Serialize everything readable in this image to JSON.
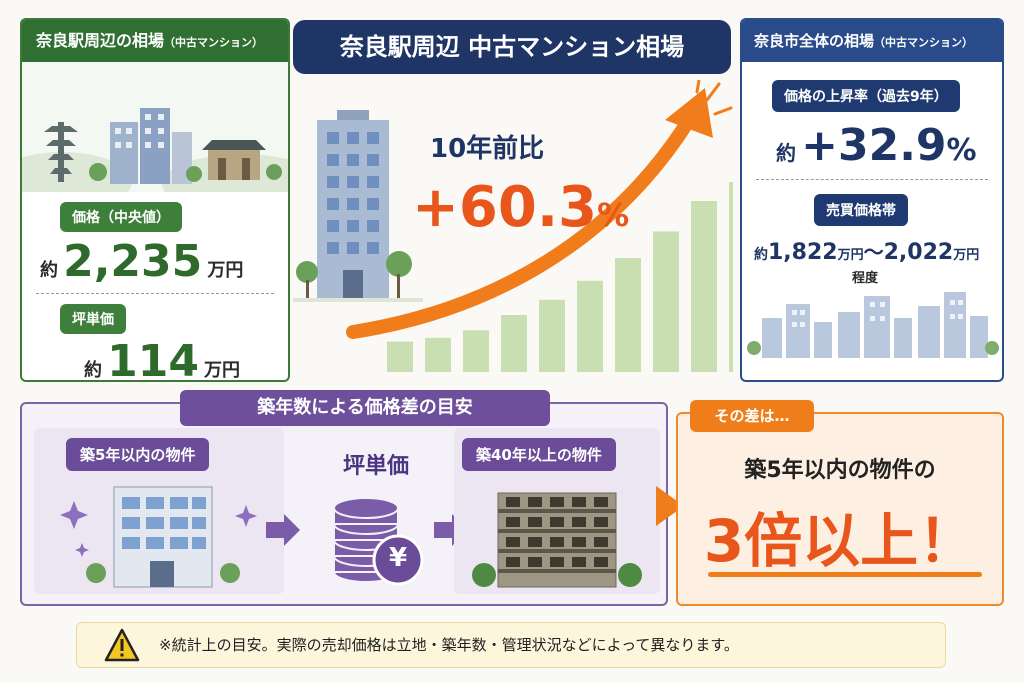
{
  "title": "奈良駅周辺 中古マンション相場",
  "left": {
    "header": "奈良駅周辺の相場",
    "header_sub": "（中古マンション）",
    "price_label": "価格（中央値）",
    "price_prefix": "約",
    "price_value": "2,235",
    "price_unit": "万円",
    "tsubo_label": "坪単価",
    "tsubo_prefix": "約",
    "tsubo_value": "114",
    "tsubo_unit": "万円"
  },
  "center": {
    "compare_label": "10年前比",
    "change_value": "+60.3",
    "change_unit": "%",
    "bar_levels": [
      0.16,
      0.18,
      0.22,
      0.3,
      0.38,
      0.48,
      0.6,
      0.74,
      0.9,
      1.0
    ],
    "colors": {
      "arrow": "#f07c1c",
      "bars": "#c9dfb2",
      "change_text": "#e8561b"
    }
  },
  "right": {
    "header": "奈良市全体の相場",
    "header_sub": "（中古マンション）",
    "rise_label": "価格の上昇率（過去9年）",
    "rise_prefix": "約",
    "rise_value": "+32.9",
    "rise_unit": "%",
    "range_label": "売買価格帯",
    "range_prefix": "約",
    "range_low": "1,822",
    "range_unit1": "万円",
    "range_sep": "～",
    "range_high": "2,022",
    "range_unit2": "万円",
    "range_suffix": "程度"
  },
  "bottom": {
    "title": "築年数による価格差の目安",
    "new_label": "築5年以内の物件",
    "mid_label": "坪単価",
    "yen_symbol": "¥",
    "old_label": "築40年以上の物件"
  },
  "orange": {
    "label": "その差は…",
    "line1": "築5年以内の物件の",
    "big": "3倍以上！"
  },
  "notice": {
    "text": "※統計上の目安。実際の売却価格は立地・築年数・管理状況などによって異なります。",
    "icon": "warning-icon"
  }
}
